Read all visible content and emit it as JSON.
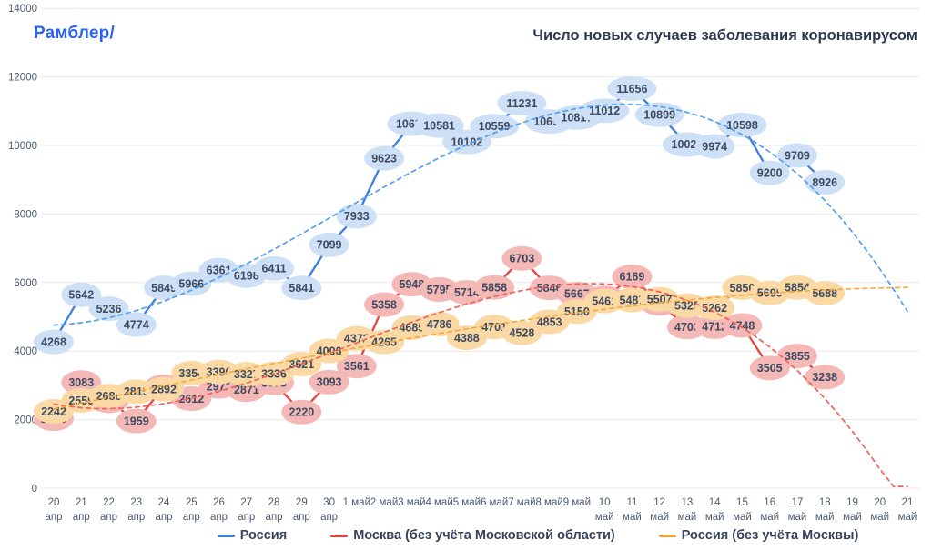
{
  "header": {
    "logo": "Рамблер/",
    "title": "Число новых случаев заболевания коронавирусом"
  },
  "colors": {
    "grid": "#e9e9e9",
    "axis_text": "#4c5a6e",
    "bubble_label": "#3e4a5f",
    "title": "#2f3a52",
    "logo": "#2a62f5",
    "legend_text": "#37415c"
  },
  "chart_data": {
    "type": "line",
    "title": "Число новых случаев заболевания коронавирусом",
    "y_axis": {
      "min": 0,
      "max": 14000,
      "step": 2000
    },
    "x_axis": {
      "categories": [
        {
          "day": "20",
          "month": "апр"
        },
        {
          "day": "21",
          "month": "апр"
        },
        {
          "day": "22",
          "month": "апр"
        },
        {
          "day": "23",
          "month": "апр"
        },
        {
          "day": "24",
          "month": "апр"
        },
        {
          "day": "25",
          "month": "апр"
        },
        {
          "day": "26",
          "month": "апр"
        },
        {
          "day": "27",
          "month": "апр"
        },
        {
          "day": "28",
          "month": "апр"
        },
        {
          "day": "29",
          "month": "апр"
        },
        {
          "day": "30",
          "month": "апр"
        },
        {
          "day": "1",
          "month": "май"
        },
        {
          "day": "2",
          "month": "май"
        },
        {
          "day": "3",
          "month": "май"
        },
        {
          "day": "4",
          "month": "май"
        },
        {
          "day": "5",
          "month": "май"
        },
        {
          "day": "6",
          "month": "май"
        },
        {
          "day": "7",
          "month": "май"
        },
        {
          "day": "8",
          "month": "май"
        },
        {
          "day": "9",
          "month": "май"
        },
        {
          "day": "10",
          "month": "май"
        },
        {
          "day": "11",
          "month": "май"
        },
        {
          "day": "12",
          "month": "май"
        },
        {
          "day": "13",
          "month": "май"
        },
        {
          "day": "14",
          "month": "май"
        },
        {
          "day": "15",
          "month": "май"
        },
        {
          "day": "16",
          "month": "май"
        },
        {
          "day": "17",
          "month": "май"
        },
        {
          "day": "18",
          "month": "май"
        },
        {
          "day": "19",
          "month": "май"
        },
        {
          "day": "20",
          "month": "май"
        },
        {
          "day": "21",
          "month": "май"
        }
      ]
    },
    "trend": {
      "type": "polynomial",
      "degree": 3,
      "extends_to_last_category": true
    },
    "legend_position": "bottom",
    "series": [
      {
        "id": "russia",
        "name": "Россия",
        "line_color": "#3b7de2",
        "trend_color": "#55a0ed",
        "bubble_color": "#cde0f6",
        "values": [
          4268,
          5642,
          5236,
          4774,
          5849,
          5966,
          6361,
          6198,
          6411,
          5841,
          7099,
          7933,
          9623,
          10633,
          10581,
          10102,
          10559,
          11231,
          10699,
          10817,
          11012,
          11656,
          10899,
          10028,
          9974,
          10598,
          9200,
          9709,
          8926
        ]
      },
      {
        "id": "moscow",
        "name": "Москва (без учёта Московской области)",
        "line_color": "#e8453c",
        "trend_color": "#f0625a",
        "bubble_color": "#f4b8b6",
        "values": [
          2026,
          3083,
          2548,
          1959,
          2957,
          2612,
          2971,
          2871,
          3075,
          2220,
          3093,
          3561,
          5358,
          5948,
          5795,
          5714,
          5858,
          6703,
          5846,
          5667,
          5551,
          6169,
          5392,
          4703,
          4712,
          4748,
          3505,
          3855,
          3238
        ]
      },
      {
        "id": "russia_ex_moscow",
        "name": "Россия (без учёта Москвы)",
        "line_color": "#f0a238",
        "trend_color": "#f4ab40",
        "bubble_color": "#fad9a5",
        "values": [
          2242,
          2559,
          2688,
          2815,
          2892,
          3354,
          3390,
          3327,
          3336,
          3621,
          4006,
          4372,
          4265,
          4685,
          4786,
          4388,
          4701,
          4528,
          4853,
          5150,
          5461,
          5487,
          5507,
          5325,
          5262,
          5850,
          5695,
          5854,
          5688
        ]
      }
    ]
  }
}
